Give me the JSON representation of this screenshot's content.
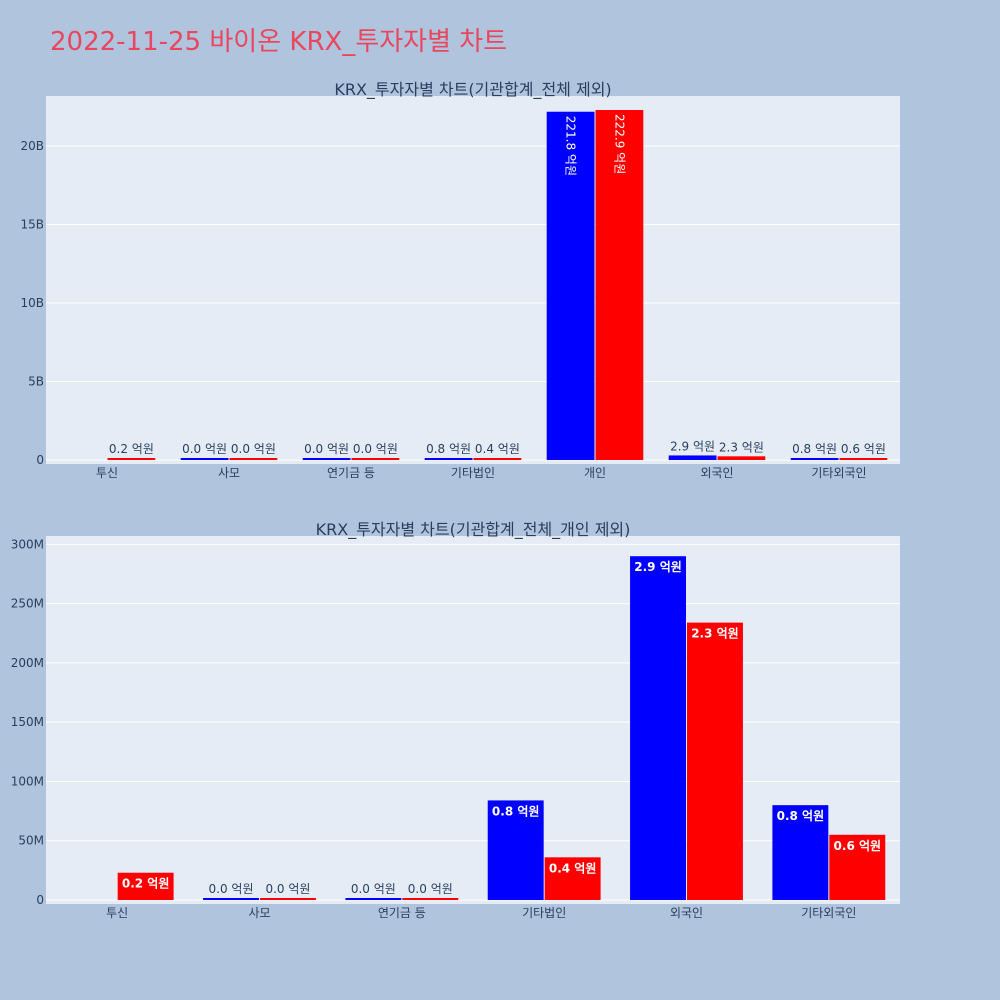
{
  "title": "2022-11-25 바이온 KRX_투자자별 차트",
  "colors": {
    "background": "#b0c4de",
    "plot_bg": "#e5ecf6",
    "grid": "#ffffff",
    "title": "#e8475f",
    "text": "#2a3f5f",
    "series_a": "#0000ff",
    "series_b": "#ff0000"
  },
  "chart_data": [
    {
      "type": "bar",
      "title": "KRX_투자자별 차트(기관합계_전체 제외)",
      "categories": [
        "투신",
        "사모",
        "연기금 등",
        "기타법인",
        "개인",
        "외국인",
        "기타외국인"
      ],
      "series": [
        {
          "values": [
            0,
            1000000,
            1000000,
            84000000,
            22180000000,
            290000000,
            80000000
          ],
          "labels": [
            "",
            "0.0 억원",
            "0.0 억원",
            "0.8 억원",
            "221.8 억원",
            "2.9 억원",
            "0.8 억원"
          ]
        },
        {
          "values": [
            23000000,
            1000000,
            1000000,
            36000000,
            22290000000,
            234000000,
            55000000
          ],
          "labels": [
            "0.2 억원",
            "0.0 억원",
            "0.0 억원",
            "0.4 억원",
            "222.9 억원",
            "2.3 억원",
            "0.6 억원"
          ]
        }
      ],
      "ylim": [
        0,
        22800000000
      ],
      "yticks": [
        {
          "value": 0,
          "label": "0"
        },
        {
          "value": 5000000000,
          "label": "5B"
        },
        {
          "value": 10000000000,
          "label": "10B"
        },
        {
          "value": 15000000000,
          "label": "15B"
        },
        {
          "value": 20000000000,
          "label": "20B"
        }
      ],
      "grid": true
    },
    {
      "type": "bar",
      "title": "KRX_투자자별 차트(기관합계_전체_개인 제외)",
      "categories": [
        "투신",
        "사모",
        "연기금 등",
        "기타법인",
        "외국인",
        "기타외국인"
      ],
      "series": [
        {
          "values": [
            0,
            1000000,
            1000000,
            84000000,
            290000000,
            80000000
          ],
          "labels": [
            "",
            "0.0 억원",
            "0.0 억원",
            "0.8 억원",
            "2.9 억원",
            "0.8 억원"
          ]
        },
        {
          "values": [
            23000000,
            1000000,
            1000000,
            36000000,
            234000000,
            55000000
          ],
          "labels": [
            "0.2 억원",
            "0.0 억원",
            "0.0 억원",
            "0.4 억원",
            "2.3 억원",
            "0.6 억원"
          ]
        }
      ],
      "ylim": [
        0,
        302000000
      ],
      "yticks": [
        {
          "value": 0,
          "label": "0"
        },
        {
          "value": 50000000,
          "label": "50M"
        },
        {
          "value": 100000000,
          "label": "100M"
        },
        {
          "value": 150000000,
          "label": "150M"
        },
        {
          "value": 200000000,
          "label": "200M"
        },
        {
          "value": 250000000,
          "label": "250M"
        },
        {
          "value": 300000000,
          "label": "300M"
        }
      ],
      "grid": true
    }
  ]
}
